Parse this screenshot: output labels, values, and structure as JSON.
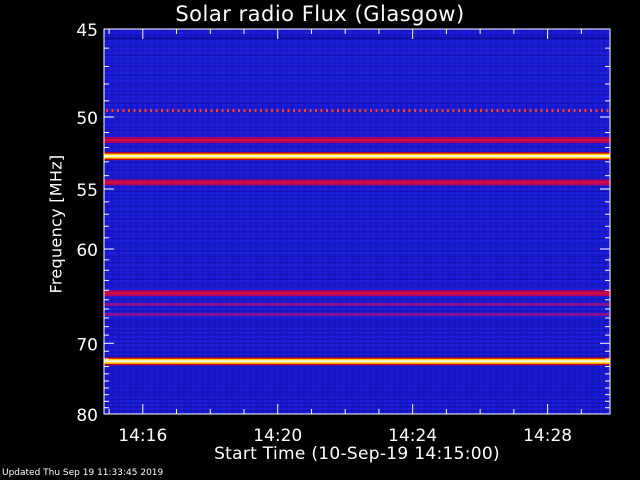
{
  "chart_data": {
    "type": "heatmap",
    "title": "Solar radio Flux (Glasgow)",
    "xlabel": "Start Time (10-Sep-19 14:15:00)",
    "ylabel": "Frequency [MHz]",
    "x_tick_labels": [
      "14:16",
      "14:20",
      "14:24",
      "14:28"
    ],
    "x_tick_minutes": [
      16,
      20,
      24,
      28
    ],
    "x_range_minutes": [
      14.85,
      29.85
    ],
    "y_tick_labels": [
      "45",
      "50",
      "55",
      "60",
      "70",
      "80"
    ],
    "y_scale": "reciprocal",
    "y_ticks": [
      45,
      50,
      55,
      60,
      70,
      80
    ],
    "ylim": [
      45,
      80
    ],
    "bands": [
      {
        "freq": 49.6,
        "level": "dotted-red"
      },
      {
        "freq": 51.5,
        "level": "medium"
      },
      {
        "freq": 52.6,
        "level": "strong"
      },
      {
        "freq": 54.5,
        "level": "medium"
      },
      {
        "freq": 64.3,
        "level": "medium"
      },
      {
        "freq": 65.5,
        "level": "weak"
      },
      {
        "freq": 66.6,
        "level": "weak"
      },
      {
        "freq": 72.3,
        "level": "strong"
      }
    ],
    "colors": {
      "background": "#1a1ad6",
      "dark": "#1010a8",
      "medium": "#b00060",
      "strong": "#ffd000",
      "frame": "#ffffff"
    }
  },
  "footer": {
    "updated": "Updated Thu Sep 19 11:33:45 2019"
  }
}
